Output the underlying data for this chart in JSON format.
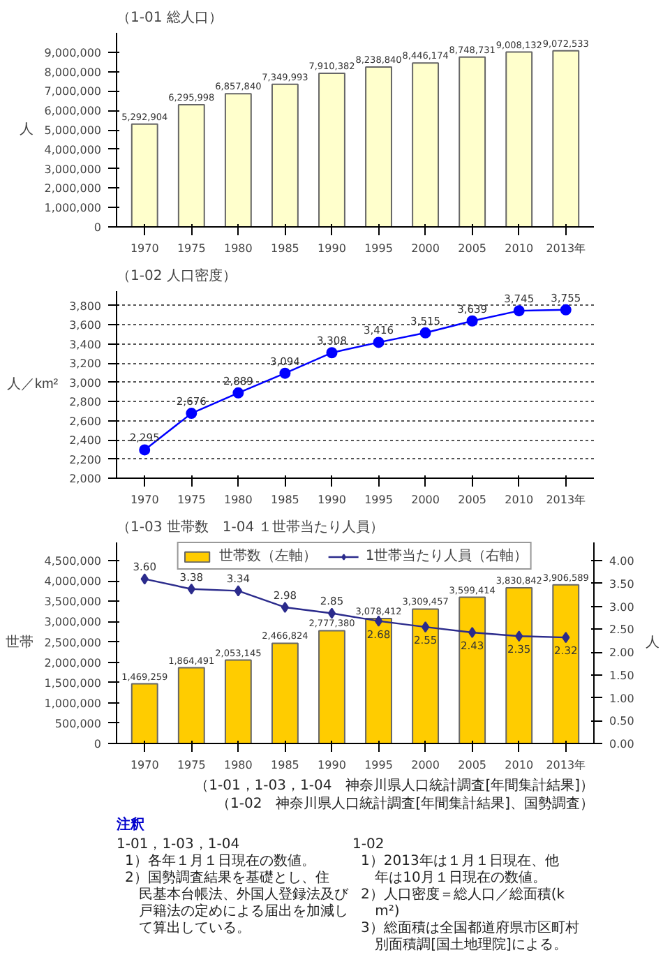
{
  "chart_data": [
    {
      "type": "bar",
      "title": "（1-01 総人口）",
      "ylabel": "人",
      "categories": [
        "1970",
        "1975",
        "1980",
        "1985",
        "1990",
        "1995",
        "2000",
        "2005",
        "2010",
        "2013年"
      ],
      "values": [
        5292904,
        6295998,
        6857840,
        7349993,
        7910382,
        8238840,
        8446174,
        8748731,
        9008132,
        9072533
      ],
      "color": "#ffffcc",
      "value_labels": [
        "5,292,904",
        "6,295,998",
        "6,857,840",
        "7,349,993",
        "7,910,382",
        "8,238,840",
        "8,446,174",
        "8,748,731",
        "9,008,132",
        "9,072,533"
      ],
      "ylim": [
        0,
        10000000
      ],
      "yticks": [
        0,
        {
          "value": 1000000,
          "label": "1,000,000"
        },
        {
          "value": 2000000,
          "label": "2,000,000"
        },
        {
          "value": 3000000,
          "label": "3,000,000"
        },
        {
          "value": 4000000,
          "label": "4,000,000"
        },
        {
          "value": 5000000,
          "label": "5,000,000"
        },
        {
          "value": 6000000,
          "label": "6,000,000"
        },
        {
          "value": 7000000,
          "label": "7,000,000"
        },
        {
          "value": 8000000,
          "label": "8,000,000"
        },
        {
          "value": 9000000,
          "label": "9,000,000"
        }
      ],
      "grid": false,
      "legend": false
    },
    {
      "type": "line",
      "title": "（1-02 人口密度）",
      "ylabel": "人／km²",
      "categories": [
        "1970",
        "1975",
        "1980",
        "1985",
        "1990",
        "1995",
        "2000",
        "2005",
        "2010",
        "2013年"
      ],
      "values": [
        2295,
        2676,
        2889,
        3094,
        3308,
        3416,
        3515,
        3639,
        3745,
        3755
      ],
      "color": "#0000ff",
      "value_labels": [
        "2,295",
        "2,676",
        "2,889",
        "3,094",
        "3,308",
        "3,416",
        "3,515",
        "3,639",
        "3,745",
        "3,755"
      ],
      "marker": "circle",
      "line_style": "solid",
      "ylim": [
        2000,
        3950
      ],
      "yticks": [
        {
          "value": 2000,
          "label": "2,000"
        },
        {
          "value": 2200,
          "label": "2,200"
        },
        {
          "value": 2400,
          "label": "2,400"
        },
        {
          "value": 2600,
          "label": "2,600"
        },
        {
          "value": 2800,
          "label": "2,800"
        },
        {
          "value": 3000,
          "label": "3,000"
        },
        {
          "value": 3200,
          "label": "3,200"
        },
        {
          "value": 3400,
          "label": "3,400"
        },
        {
          "value": 3600,
          "label": "3,600"
        },
        {
          "value": 3800,
          "label": "3,800"
        }
      ],
      "grid": "y",
      "legend": false
    },
    {
      "type": "bar",
      "title": "（1-03 世帯数　1-04 １世帯当たり人員）",
      "ylabel": "世帯",
      "y2label": "人",
      "categories": [
        "1970",
        "1975",
        "1980",
        "1985",
        "1990",
        "1995",
        "2000",
        "2005",
        "2010",
        "2013年"
      ],
      "series": [
        {
          "name": "世帯数（左軸）",
          "type": "bar",
          "color": "#ffcc00",
          "values": [
            1469259,
            1864491,
            2053145,
            2466824,
            2777380,
            3078412,
            3309457,
            3599414,
            3830842,
            3906589
          ],
          "value_labels": [
            "1,469,259",
            "1,864,491",
            "2,053,145",
            "2,466,824",
            "2,777,380",
            "3,078,412",
            "3,309,457",
            "3,599,414",
            "3,830,842",
            "3,906,589"
          ]
        },
        {
          "name": "1世帯当たり人員（右軸）",
          "type": "line",
          "axis": "y2",
          "color": "#2b2b8c",
          "marker": "diamond",
          "values": [
            3.6,
            3.38,
            3.34,
            2.98,
            2.85,
            2.68,
            2.55,
            2.43,
            2.35,
            2.32
          ],
          "value_labels": [
            "3.60",
            "3.38",
            "3.34",
            "2.98",
            "2.85",
            "2.68",
            "2.55",
            "2.43",
            "2.35",
            "2.32"
          ]
        }
      ],
      "legend": "top",
      "grid": false,
      "ylim": [
        0,
        4950000
      ],
      "yticks": [
        0,
        {
          "value": 500000,
          "label": "500,000"
        },
        {
          "value": 1000000,
          "label": "1,000,000"
        },
        {
          "value": 1500000,
          "label": "1,500,000"
        },
        {
          "value": 2000000,
          "label": "2,000,000"
        },
        {
          "value": 2500000,
          "label": "2,500,000"
        },
        {
          "value": 3000000,
          "label": "3,000,000"
        },
        {
          "value": 3500000,
          "label": "3,500,000"
        },
        {
          "value": 4000000,
          "label": "4,000,000"
        },
        {
          "value": 4500000,
          "label": "4,500,000"
        }
      ],
      "y2lim": [
        0,
        4.4
      ],
      "y2ticks": [
        {
          "value": 0,
          "label": "0.00"
        },
        {
          "value": 0.5,
          "label": "0.50"
        },
        {
          "value": 1,
          "label": "1.00"
        },
        {
          "value": 1.5,
          "label": "1.50"
        },
        {
          "value": 2,
          "label": "2.00"
        },
        {
          "value": 2.5,
          "label": "2.50"
        },
        {
          "value": 3,
          "label": "3.00"
        },
        {
          "value": 3.5,
          "label": "3.50"
        },
        {
          "value": 4,
          "label": "4.00"
        }
      ]
    },
    {
      "type": "other",
      "title": "注釈",
      "annotations": [
        "（1-01，1-03，1-04　神奈川県人口統計調査[年間集計結果]）",
        "（1-02　神奈川県人口統計調査[年間集計結果]、国勢調査）",
        "1-01，1-03，1-04",
        "1）各年１月１日現在の数値。",
        "2）国勢調査結果を基礎とし、住民基本台帳法、外国人登録法及び戸籍法の定めによる届出を加減して算出している。",
        "1-02",
        "1）2013年は１月１日現在、他年は10月１日現在の数値。",
        "2）人口密度＝総人口／総面積(km²)",
        "3）総面積は全国都道府県市区町村別面積調[国土地理院]による。"
      ]
    }
  ]
}
